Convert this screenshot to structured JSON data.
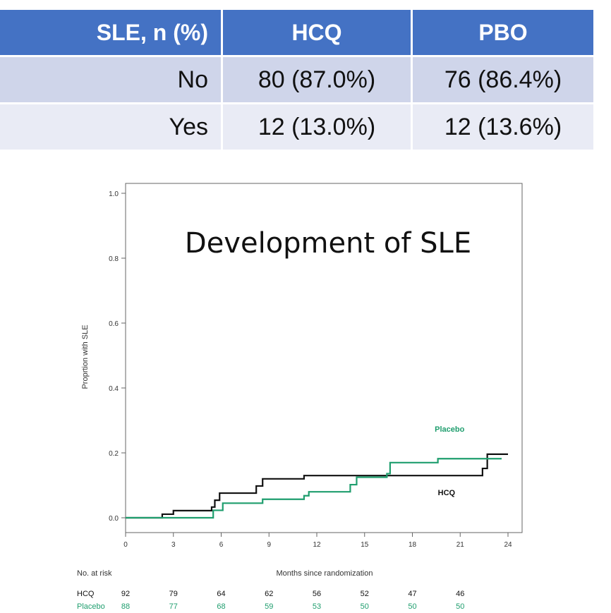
{
  "table": {
    "headers": [
      "SLE, n (%)",
      "HCQ",
      "PBO"
    ],
    "rows": [
      [
        "No",
        "80 (87.0%)",
        "76 (86.4%)"
      ],
      [
        "Yes",
        "12 (13.0%)",
        "12 (13.6%)"
      ]
    ]
  },
  "chart_data": {
    "type": "line",
    "title": "Development of SLE",
    "xlabel": "Months since randomization",
    "ylabel": "Proprtion with SLE",
    "xlim": [
      0,
      24
    ],
    "ylim": [
      0,
      1.0
    ],
    "x_ticks": [
      "0",
      "3",
      "6",
      "9",
      "12",
      "15",
      "18",
      "21",
      "24"
    ],
    "y_ticks": [
      "0.0",
      "0.2",
      "0.4",
      "0.6",
      "0.8",
      "1.0"
    ],
    "grid": false,
    "series": [
      {
        "name": "HCQ",
        "color": "#111111",
        "step": true,
        "x": [
          0,
          2.3,
          3,
          5.4,
          5.6,
          5.9,
          8.2,
          8.6,
          11.2,
          14.5,
          16.6,
          22.4,
          22.7,
          24
        ],
        "y": [
          0,
          0.011,
          0.022,
          0.033,
          0.054,
          0.076,
          0.098,
          0.12,
          0.13,
          0.13,
          0.13,
          0.152,
          0.196,
          0.196
        ]
      },
      {
        "name": "Placebo",
        "color": "#1f9e6e",
        "step": true,
        "x": [
          0,
          5.5,
          6.1,
          7.2,
          8.6,
          11.2,
          11.5,
          13.7,
          14.1,
          14.5,
          16.4,
          16.6,
          19.6,
          22.8,
          23.6
        ],
        "y": [
          0,
          0.023,
          0.045,
          0.045,
          0.057,
          0.068,
          0.08,
          0.08,
          0.102,
          0.125,
          0.136,
          0.17,
          0.182,
          0.182,
          0.182
        ]
      }
    ],
    "annotations": [
      {
        "text": "Placebo",
        "x": 19.4,
        "y": 0.265,
        "color": "#1f9e6e"
      },
      {
        "text": "HCQ",
        "x": 19.6,
        "y": 0.07,
        "color": "#111111"
      }
    ],
    "risk_table": {
      "label": "No. at risk",
      "times": [
        0,
        3,
        6,
        9,
        12,
        15,
        18,
        21
      ],
      "rows": [
        {
          "name": "HCQ",
          "color": "#111111",
          "values": [
            "92",
            "79",
            "64",
            "62",
            "56",
            "52",
            "47",
            "46"
          ]
        },
        {
          "name": "Placebo",
          "color": "#1f9e6e",
          "values": [
            "88",
            "77",
            "68",
            "59",
            "53",
            "50",
            "50",
            "50"
          ]
        }
      ]
    }
  }
}
